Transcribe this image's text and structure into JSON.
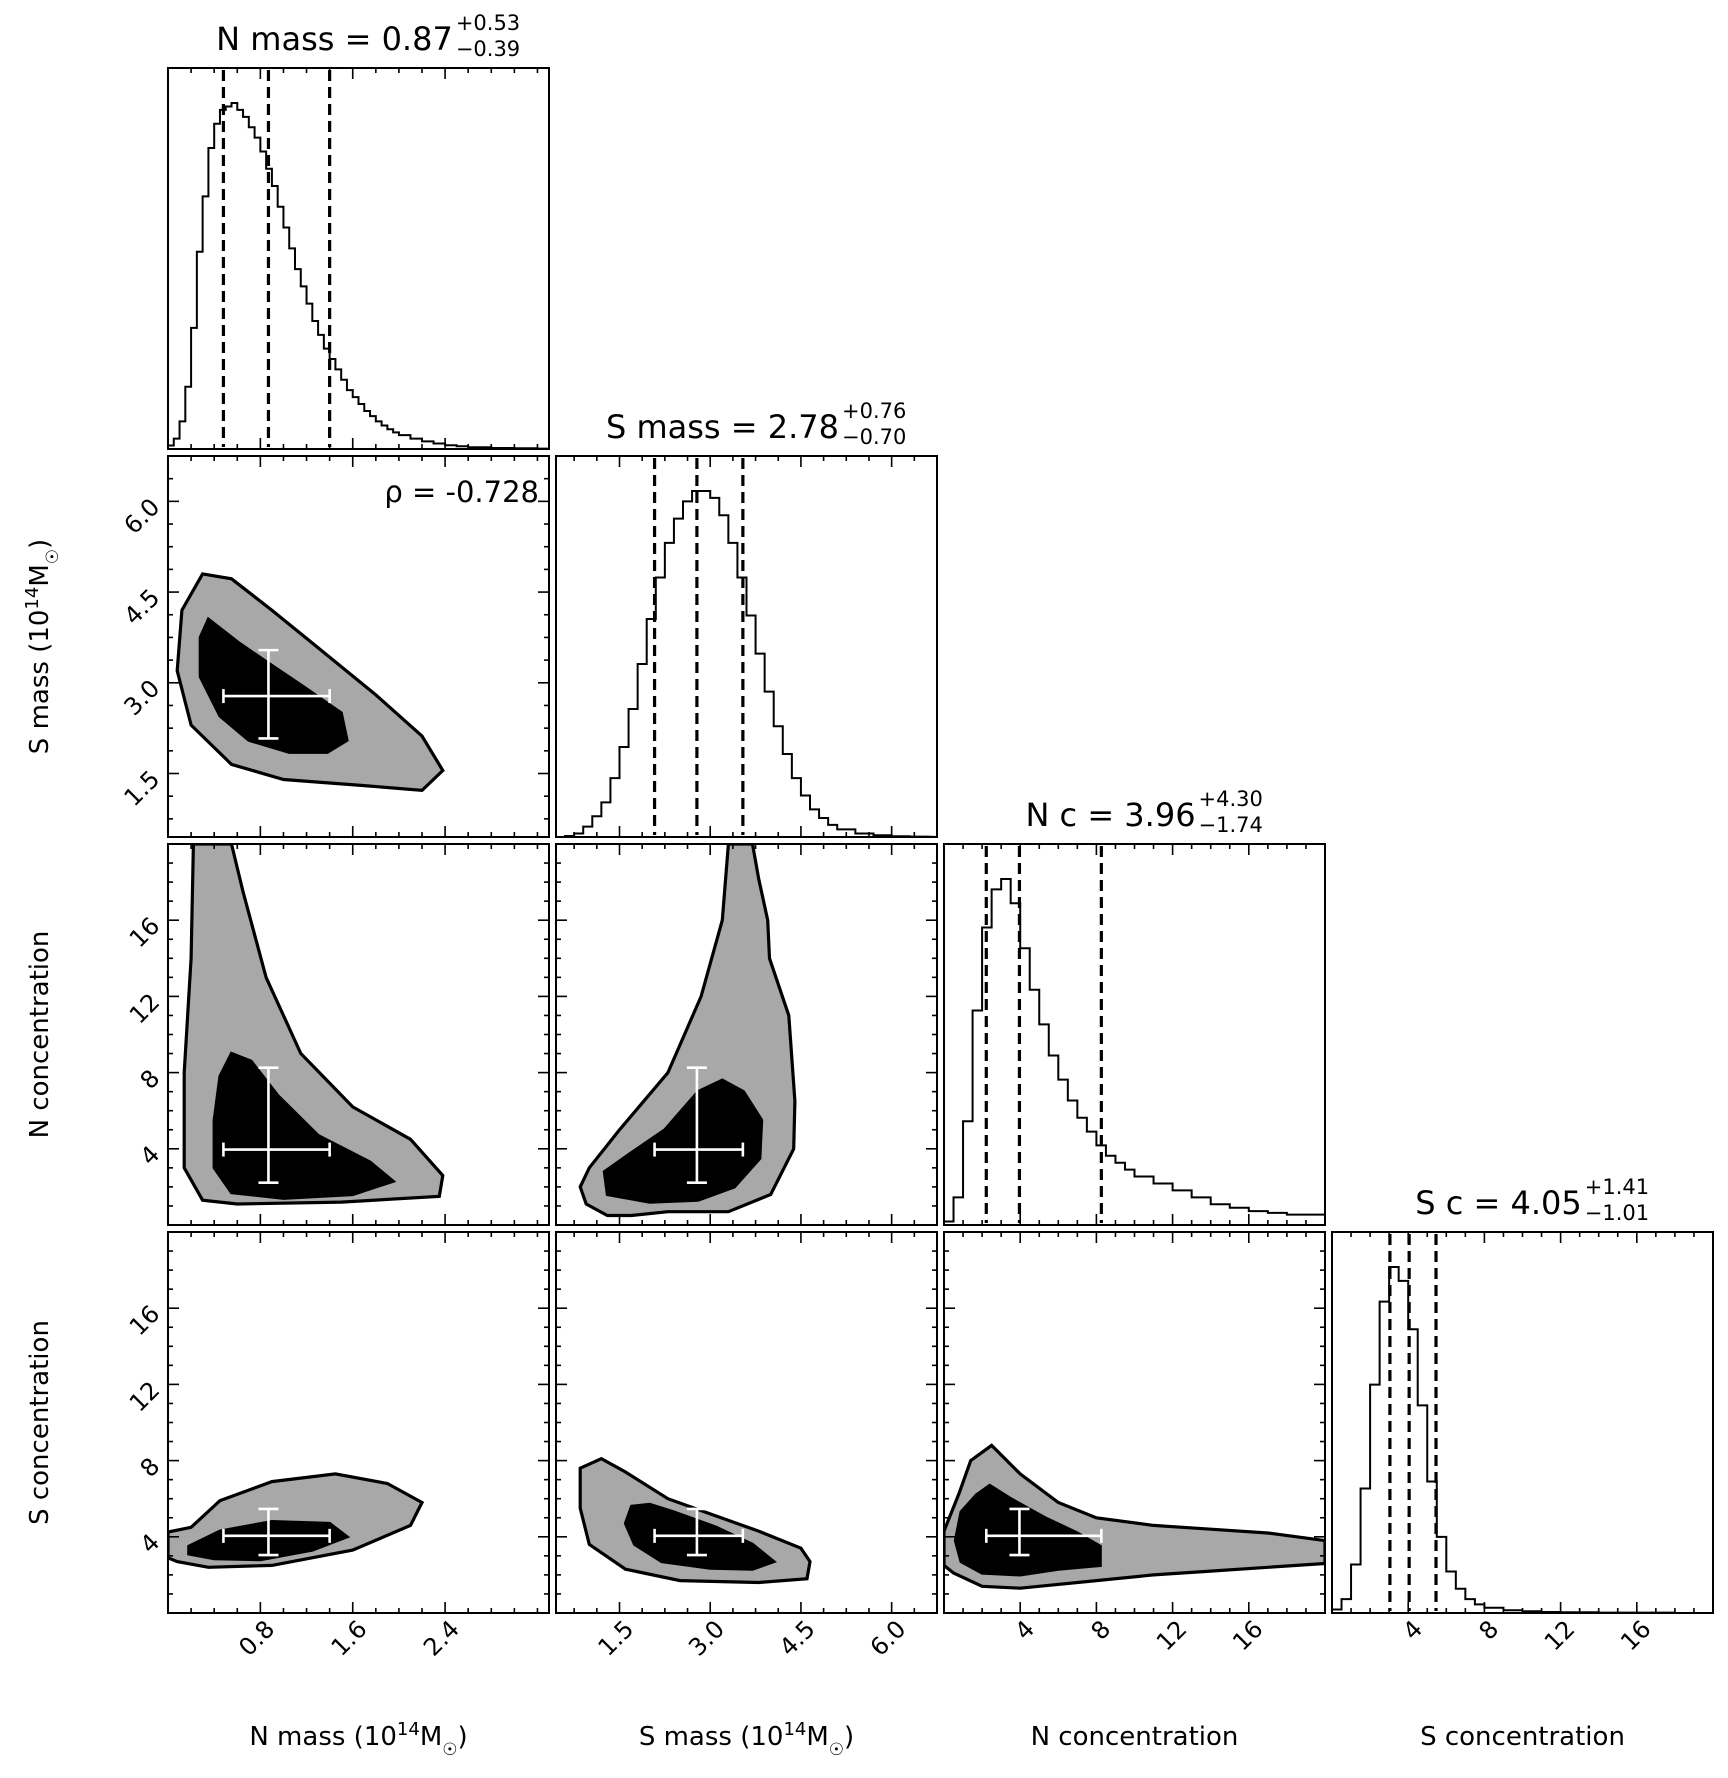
{
  "chart_data": {
    "type": "corner",
    "parameters": [
      {
        "key": "nmass",
        "axis_label_base": "N mass (10",
        "axis_label_exp": "14",
        "axis_label_tail": "M",
        "axis_label_sun": "☉",
        "axis_label_close": ")",
        "range": [
          0.0,
          3.3
        ],
        "ticks": [
          0.8,
          1.6,
          2.4
        ],
        "tick_labels": [
          "0.8",
          "1.6",
          "2.4"
        ]
      },
      {
        "key": "smass",
        "axis_label_base": "S mass (10",
        "axis_label_exp": "14",
        "axis_label_tail": "M",
        "axis_label_sun": "☉",
        "axis_label_close": ")",
        "range": [
          0.45,
          6.75
        ],
        "ticks": [
          1.5,
          3.0,
          4.5,
          6.0
        ],
        "tick_labels": [
          "1.5",
          "3.0",
          "4.5",
          "6.0"
        ]
      },
      {
        "key": "nconc",
        "axis_label": "N concentration",
        "range": [
          0.0,
          20.0
        ],
        "ticks": [
          4,
          8,
          12,
          16
        ],
        "tick_labels": [
          "4",
          "8",
          "12",
          "16"
        ]
      },
      {
        "key": "sconc",
        "axis_label": "S concentration",
        "range": [
          0.0,
          20.0
        ],
        "ticks": [
          4,
          8,
          12,
          16
        ],
        "tick_labels": [
          "4",
          "8",
          "12",
          "16"
        ]
      }
    ],
    "titles": [
      {
        "name": "N mass",
        "median": "0.87",
        "plus": "+0.53",
        "minus": "−0.39"
      },
      {
        "name": "S mass",
        "median": "2.78",
        "plus": "+0.76",
        "minus": "−0.70"
      },
      {
        "name": "N c",
        "median": "3.96",
        "plus": "+4.30",
        "minus": "−1.74"
      },
      {
        "name": "S c",
        "median": "4.05",
        "plus": "+1.41",
        "minus": "−1.01"
      }
    ],
    "medians": [
      0.87,
      2.78,
      3.96,
      4.05
    ],
    "plus_errors": [
      0.53,
      0.76,
      4.3,
      1.41
    ],
    "minus_errors": [
      0.39,
      0.7,
      1.74,
      1.01
    ],
    "correlation_annotation": "ρ = -0.728",
    "histograms": [
      {
        "x": [
          0.0,
          0.05,
          0.1,
          0.15,
          0.2,
          0.25,
          0.3,
          0.35,
          0.4,
          0.45,
          0.5,
          0.55,
          0.6,
          0.65,
          0.7,
          0.75,
          0.8,
          0.85,
          0.9,
          0.95,
          1.0,
          1.05,
          1.1,
          1.15,
          1.2,
          1.25,
          1.3,
          1.35,
          1.4,
          1.45,
          1.5,
          1.55,
          1.6,
          1.65,
          1.7,
          1.75,
          1.8,
          1.85,
          1.9,
          1.95,
          2.0,
          2.1,
          2.2,
          2.3,
          2.4,
          2.5,
          2.6,
          2.8,
          3.0,
          3.2
        ],
        "density": [
          0.01,
          0.03,
          0.08,
          0.18,
          0.35,
          0.57,
          0.73,
          0.87,
          0.94,
          0.98,
          0.99,
          1.0,
          0.98,
          0.96,
          0.93,
          0.9,
          0.86,
          0.81,
          0.76,
          0.7,
          0.64,
          0.58,
          0.52,
          0.47,
          0.42,
          0.37,
          0.33,
          0.29,
          0.26,
          0.23,
          0.2,
          0.17,
          0.15,
          0.13,
          0.11,
          0.095,
          0.08,
          0.068,
          0.057,
          0.048,
          0.04,
          0.03,
          0.022,
          0.016,
          0.011,
          0.008,
          0.005,
          0.003,
          0.002,
          0.001
        ]
      },
      {
        "x": [
          0.6,
          0.75,
          0.9,
          1.05,
          1.2,
          1.35,
          1.5,
          1.65,
          1.8,
          1.95,
          2.1,
          2.25,
          2.4,
          2.55,
          2.7,
          2.85,
          3.0,
          3.15,
          3.3,
          3.45,
          3.6,
          3.75,
          3.9,
          4.05,
          4.2,
          4.35,
          4.5,
          4.65,
          4.8,
          4.95,
          5.1,
          5.4,
          5.7,
          6.0,
          6.3
        ],
        "density": [
          0.003,
          0.01,
          0.03,
          0.06,
          0.1,
          0.17,
          0.26,
          0.37,
          0.5,
          0.63,
          0.75,
          0.85,
          0.92,
          0.97,
          1.0,
          1.0,
          0.98,
          0.93,
          0.85,
          0.75,
          0.64,
          0.53,
          0.42,
          0.32,
          0.24,
          0.17,
          0.12,
          0.08,
          0.055,
          0.035,
          0.022,
          0.01,
          0.005,
          0.002,
          0.001
        ]
      },
      {
        "x": [
          0.0,
          0.5,
          1.0,
          1.5,
          2.0,
          2.5,
          3.0,
          3.5,
          4.0,
          4.5,
          5.0,
          5.5,
          6.0,
          6.5,
          7.0,
          7.5,
          8.0,
          8.5,
          9.0,
          9.5,
          10.0,
          11.0,
          12.0,
          13.0,
          14.0,
          15.0,
          16.0,
          17.0,
          18.0,
          19.0
        ],
        "density": [
          0.01,
          0.08,
          0.3,
          0.62,
          0.86,
          0.97,
          1.0,
          0.93,
          0.8,
          0.68,
          0.58,
          0.49,
          0.42,
          0.36,
          0.31,
          0.27,
          0.23,
          0.2,
          0.18,
          0.16,
          0.14,
          0.12,
          0.1,
          0.08,
          0.06,
          0.05,
          0.04,
          0.035,
          0.03,
          0.03
        ]
      },
      {
        "x": [
          0.0,
          0.5,
          1.0,
          1.5,
          2.0,
          2.5,
          3.0,
          3.5,
          4.0,
          4.5,
          5.0,
          5.5,
          6.0,
          6.5,
          7.0,
          7.5,
          8.0,
          9.0,
          10.0,
          11.0,
          12.0,
          13.0,
          14.0,
          16.0,
          18.0
        ],
        "density": [
          0.01,
          0.04,
          0.14,
          0.36,
          0.66,
          0.9,
          1.0,
          0.96,
          0.82,
          0.6,
          0.38,
          0.22,
          0.12,
          0.07,
          0.04,
          0.025,
          0.015,
          0.008,
          0.005,
          0.003,
          0.002,
          0.002,
          0.001,
          0.001,
          0.0
        ]
      }
    ],
    "contours": [
      {
        "panel": "smass_vs_nmass",
        "x_param": "nmass",
        "y_param": "smass",
        "outer_level": [
          [
            0.3,
            4.8
          ],
          [
            0.55,
            4.72
          ],
          [
            0.9,
            4.2
          ],
          [
            1.35,
            3.5
          ],
          [
            1.8,
            2.8
          ],
          [
            2.2,
            2.12
          ],
          [
            2.38,
            1.55
          ],
          [
            2.2,
            1.22
          ],
          [
            1.7,
            1.3
          ],
          [
            1.0,
            1.4
          ],
          [
            0.55,
            1.65
          ],
          [
            0.2,
            2.3
          ],
          [
            0.08,
            3.2
          ],
          [
            0.12,
            4.2
          ]
        ],
        "inner_level": [
          [
            0.35,
            4.05
          ],
          [
            0.62,
            3.65
          ],
          [
            0.85,
            3.35
          ],
          [
            1.2,
            2.9
          ],
          [
            1.5,
            2.5
          ],
          [
            1.55,
            2.05
          ],
          [
            1.38,
            1.85
          ],
          [
            1.05,
            1.85
          ],
          [
            0.7,
            2.05
          ],
          [
            0.45,
            2.45
          ],
          [
            0.28,
            3.1
          ],
          [
            0.28,
            3.75
          ]
        ]
      },
      {
        "panel": "nconc_vs_nmass",
        "x_param": "nmass",
        "y_param": "nconc",
        "outer_level": [
          [
            0.22,
            20.0
          ],
          [
            0.55,
            20.0
          ],
          [
            0.65,
            17.5
          ],
          [
            0.85,
            13.0
          ],
          [
            1.15,
            9.0
          ],
          [
            1.6,
            6.2
          ],
          [
            2.1,
            4.5
          ],
          [
            2.38,
            2.6
          ],
          [
            2.35,
            1.5
          ],
          [
            1.5,
            1.2
          ],
          [
            0.6,
            1.1
          ],
          [
            0.3,
            1.3
          ],
          [
            0.14,
            3.0
          ],
          [
            0.14,
            8.0
          ],
          [
            0.2,
            14.0
          ]
        ],
        "inner_level": [
          [
            0.55,
            9.0
          ],
          [
            0.72,
            8.6
          ],
          [
            0.95,
            6.8
          ],
          [
            1.3,
            4.7
          ],
          [
            1.75,
            3.3
          ],
          [
            1.95,
            2.3
          ],
          [
            1.6,
            1.6
          ],
          [
            1.0,
            1.4
          ],
          [
            0.55,
            1.7
          ],
          [
            0.4,
            3.0
          ],
          [
            0.4,
            5.5
          ],
          [
            0.45,
            7.8
          ]
        ]
      },
      {
        "panel": "nconc_vs_smass",
        "x_param": "smass",
        "y_param": "nconc",
        "outer_level": [
          [
            3.3,
            20.0
          ],
          [
            3.7,
            20.0
          ],
          [
            3.8,
            18.2
          ],
          [
            3.95,
            16.0
          ],
          [
            3.98,
            14.0
          ],
          [
            4.3,
            11.0
          ],
          [
            4.4,
            6.5
          ],
          [
            4.38,
            4.0
          ],
          [
            4.0,
            1.6
          ],
          [
            3.3,
            0.7
          ],
          [
            2.8,
            0.7
          ],
          [
            2.3,
            0.7
          ],
          [
            1.7,
            0.5
          ],
          [
            1.3,
            0.5
          ],
          [
            0.95,
            1.1
          ],
          [
            0.85,
            2.0
          ],
          [
            1.0,
            3.0
          ],
          [
            1.5,
            5.0
          ],
          [
            2.3,
            8.0
          ],
          [
            2.85,
            12.0
          ],
          [
            3.2,
            16.0
          ]
        ],
        "inner_level": [
          [
            2.25,
            5.0
          ],
          [
            2.8,
            7.0
          ],
          [
            3.2,
            7.6
          ],
          [
            3.55,
            7.0
          ],
          [
            3.85,
            5.5
          ],
          [
            3.82,
            3.5
          ],
          [
            3.4,
            2.0
          ],
          [
            2.8,
            1.3
          ],
          [
            2.0,
            1.2
          ],
          [
            1.3,
            1.6
          ],
          [
            1.25,
            2.8
          ],
          [
            1.7,
            3.8
          ]
        ]
      },
      {
        "panel": "sconc_vs_nmass",
        "x_param": "nmass",
        "y_param": "sconc",
        "outer_level": [
          [
            0.0,
            4.25
          ],
          [
            0.2,
            4.5
          ],
          [
            0.45,
            5.9
          ],
          [
            0.9,
            6.9
          ],
          [
            1.45,
            7.3
          ],
          [
            1.9,
            6.8
          ],
          [
            2.2,
            5.8
          ],
          [
            2.1,
            4.6
          ],
          [
            1.6,
            3.3
          ],
          [
            0.9,
            2.5
          ],
          [
            0.35,
            2.4
          ],
          [
            0.08,
            2.7
          ],
          [
            0.0,
            2.9
          ]
        ],
        "inner_level": [
          [
            0.18,
            3.5
          ],
          [
            0.45,
            4.3
          ],
          [
            0.9,
            4.8
          ],
          [
            1.4,
            4.7
          ],
          [
            1.55,
            4.0
          ],
          [
            1.25,
            3.3
          ],
          [
            0.8,
            2.8
          ],
          [
            0.4,
            2.85
          ],
          [
            0.18,
            3.1
          ]
        ]
      },
      {
        "panel": "sconc_vs_smass",
        "x_param": "smass",
        "y_param": "sconc",
        "outer_level": [
          [
            0.85,
            7.6
          ],
          [
            1.2,
            8.1
          ],
          [
            1.6,
            7.4
          ],
          [
            2.3,
            6.0
          ],
          [
            3.0,
            5.2
          ],
          [
            3.8,
            4.3
          ],
          [
            4.5,
            3.4
          ],
          [
            4.65,
            2.7
          ],
          [
            4.6,
            1.8
          ],
          [
            3.8,
            1.6
          ],
          [
            2.5,
            1.7
          ],
          [
            1.6,
            2.3
          ],
          [
            1.0,
            3.6
          ],
          [
            0.85,
            5.5
          ]
        ],
        "inner_level": [
          [
            1.7,
            5.6
          ],
          [
            2.0,
            5.7
          ],
          [
            2.4,
            5.3
          ],
          [
            3.1,
            4.5
          ],
          [
            3.7,
            3.6
          ],
          [
            4.05,
            2.7
          ],
          [
            3.7,
            2.3
          ],
          [
            3.0,
            2.35
          ],
          [
            2.2,
            2.7
          ],
          [
            1.75,
            3.6
          ],
          [
            1.6,
            4.7
          ]
        ]
      },
      {
        "panel": "sconc_vs_nconc",
        "x_param": "nconc",
        "y_param": "sconc",
        "outer_level": [
          [
            0.0,
            4.3
          ],
          [
            0.8,
            6.3
          ],
          [
            1.4,
            8.0
          ],
          [
            2.5,
            8.8
          ],
          [
            4.0,
            7.3
          ],
          [
            6.0,
            5.8
          ],
          [
            8.0,
            5.0
          ],
          [
            11.0,
            4.6
          ],
          [
            14.0,
            4.4
          ],
          [
            17.0,
            4.2
          ],
          [
            20.0,
            3.8
          ],
          [
            20.0,
            2.6
          ],
          [
            17.0,
            2.4
          ],
          [
            14.0,
            2.2
          ],
          [
            11.0,
            2.0
          ],
          [
            8.0,
            1.7
          ],
          [
            4.0,
            1.3
          ],
          [
            2.0,
            1.4
          ],
          [
            0.5,
            2.1
          ],
          [
            0.0,
            2.5
          ],
          [
            0.0,
            3.3
          ]
        ],
        "inner_level": [
          [
            0.9,
            5.3
          ],
          [
            1.7,
            6.2
          ],
          [
            2.4,
            6.7
          ],
          [
            3.5,
            6.0
          ],
          [
            5.3,
            5.0
          ],
          [
            7.0,
            4.2
          ],
          [
            8.2,
            3.5
          ],
          [
            8.2,
            2.5
          ],
          [
            6.0,
            2.3
          ],
          [
            4.0,
            2.0
          ],
          [
            2.0,
            2.1
          ],
          [
            0.9,
            2.7
          ],
          [
            0.6,
            3.8
          ]
        ]
      }
    ]
  }
}
